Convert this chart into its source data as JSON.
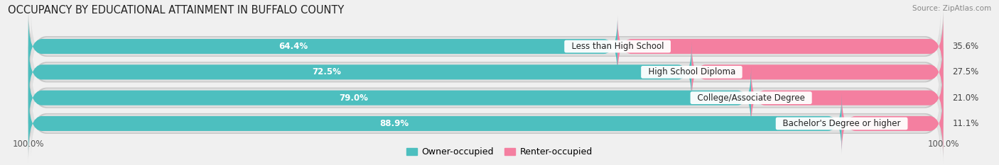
{
  "title": "OCCUPANCY BY EDUCATIONAL ATTAINMENT IN BUFFALO COUNTY",
  "source": "Source: ZipAtlas.com",
  "categories": [
    "Less than High School",
    "High School Diploma",
    "College/Associate Degree",
    "Bachelor's Degree or higher"
  ],
  "owner_values": [
    64.4,
    72.5,
    79.0,
    88.9
  ],
  "renter_values": [
    35.6,
    27.5,
    21.0,
    11.1
  ],
  "owner_color": "#4dbfbf",
  "renter_color": "#f47fa0",
  "owner_label": "Owner-occupied",
  "renter_label": "Renter-occupied",
  "axis_label_left": "100.0%",
  "axis_label_right": "100.0%",
  "title_fontsize": 10.5,
  "source_fontsize": 7.5,
  "bar_label_fontsize": 8.5,
  "cat_fontsize": 8.5,
  "legend_fontsize": 9,
  "background_color": "#f0f0f0",
  "bar_background": "#e0e0e0",
  "bar_shadow_color": "#c8c8c8"
}
